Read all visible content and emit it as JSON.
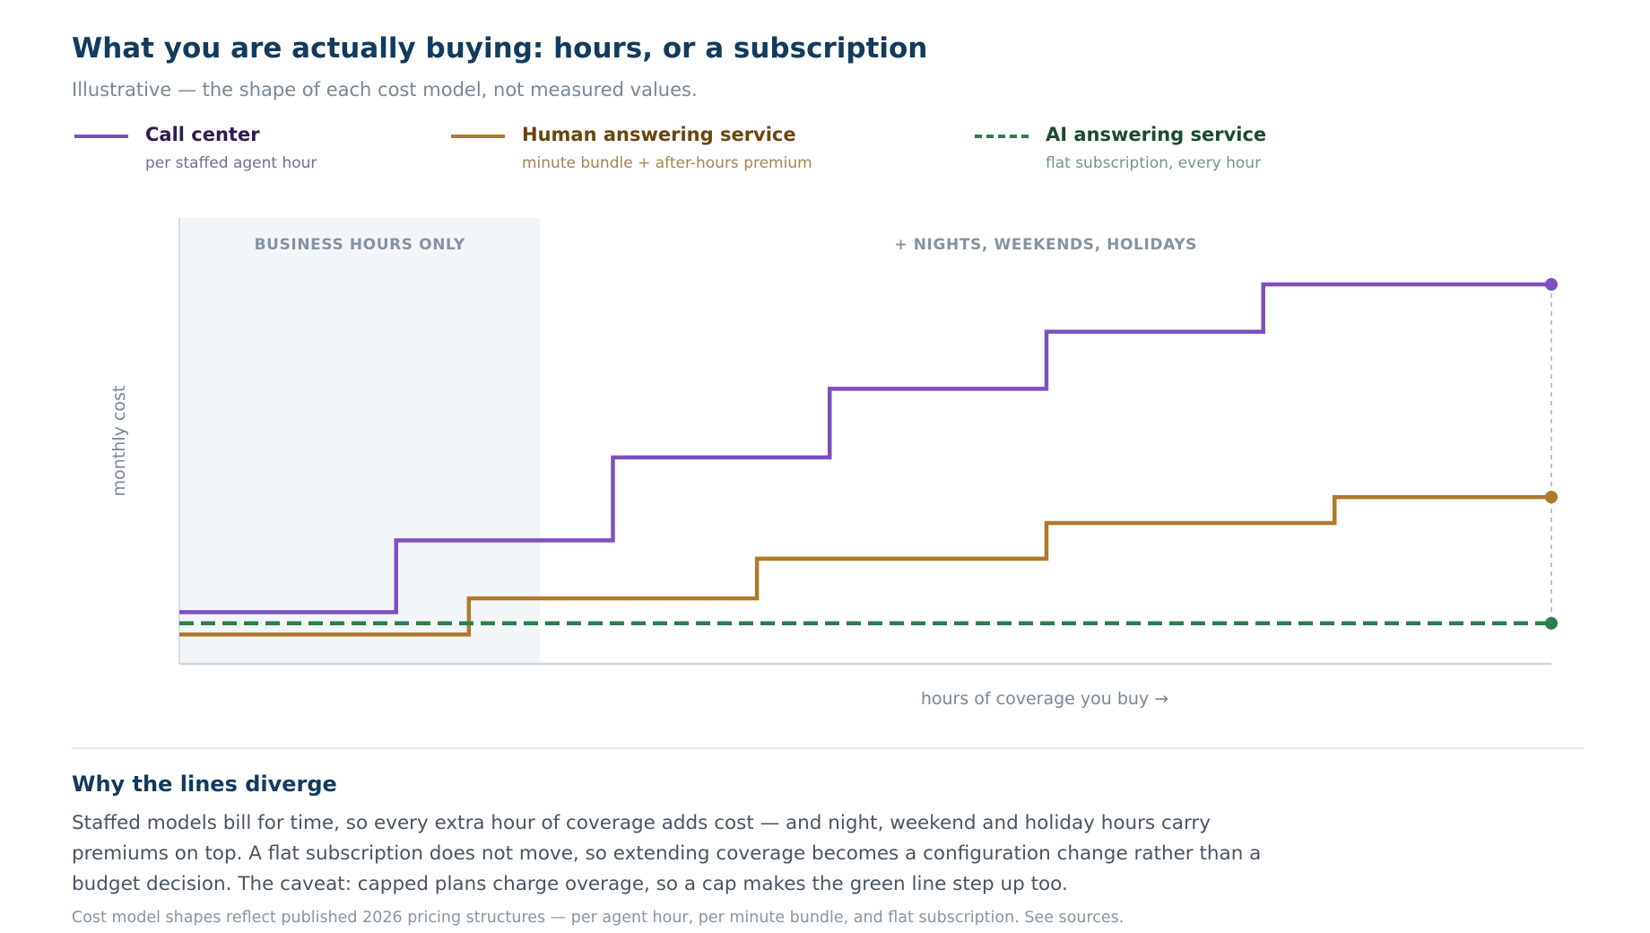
{
  "header": {
    "title": "What you are actually buying: hours, or a subscription",
    "subtitle": "Illustrative — the shape of each cost model, not measured values."
  },
  "legend": [
    {
      "name": "Call center",
      "desc": "per staffed agent hour",
      "color": "#7d4fbf",
      "name_color": "#2f1b52",
      "desc_color": "#7a6a96",
      "dashed": false
    },
    {
      "name": "Human answering service",
      "desc": "minute bundle + after-hours premium",
      "color": "#b07a2a",
      "name_color": "#6b4510",
      "desc_color": "#a7844f",
      "dashed": false
    },
    {
      "name": "AI answering service",
      "desc": "flat subscription, every hour",
      "color": "#2e7d4f",
      "name_color": "#1d4a30",
      "desc_color": "#6f9a80",
      "dashed": true
    }
  ],
  "chart_data": {
    "type": "line",
    "step": true,
    "title": "",
    "xlabel": "hours of coverage you buy →",
    "ylabel": "monthly cost",
    "xlim": [
      0,
      1
    ],
    "ylim": [
      0,
      1
    ],
    "grid": false,
    "legend_position": "top",
    "regions": [
      {
        "label": "BUSINESS HOURS ONLY",
        "x0": 0,
        "x1": 0.263,
        "fill": "#f3f6f9"
      },
      {
        "label": "+ NIGHTS, WEEKENDS, HOLIDAYS",
        "x0": 0.263,
        "x1": 1
      }
    ],
    "series": [
      {
        "name": "Call center",
        "color": "#7d4fbf",
        "dashed": false,
        "x": [
          0,
          0.158,
          0.316,
          0.474,
          0.632,
          0.79,
          1
        ],
        "y": [
          0.116,
          0.277,
          0.463,
          0.617,
          0.745,
          0.851,
          0.851
        ]
      },
      {
        "name": "Human answering service",
        "color": "#b07a2a",
        "dashed": false,
        "x": [
          0,
          0.211,
          0.421,
          0.632,
          0.842,
          1
        ],
        "y": [
          0.066,
          0.147,
          0.236,
          0.316,
          0.374,
          0.374
        ]
      },
      {
        "name": "AI answering service",
        "color": "#2e7d4f",
        "dashed": true,
        "x": [
          0,
          1
        ],
        "y": [
          0.091,
          0.091
        ]
      }
    ]
  },
  "explainer": {
    "title": "Why the lines diverge",
    "body": "Staffed models bill for time, so every extra hour of coverage adds cost — and night, weekend and holiday hours carry premiums on top. A flat subscription does not move, so extending coverage becomes a configuration change rather than a budget decision. The caveat: capped plans charge overage, so a cap makes the green line step up too.",
    "source": "Cost model shapes reflect published 2026 pricing structures — per agent hour, per minute bundle, and flat subscription. See sources."
  }
}
